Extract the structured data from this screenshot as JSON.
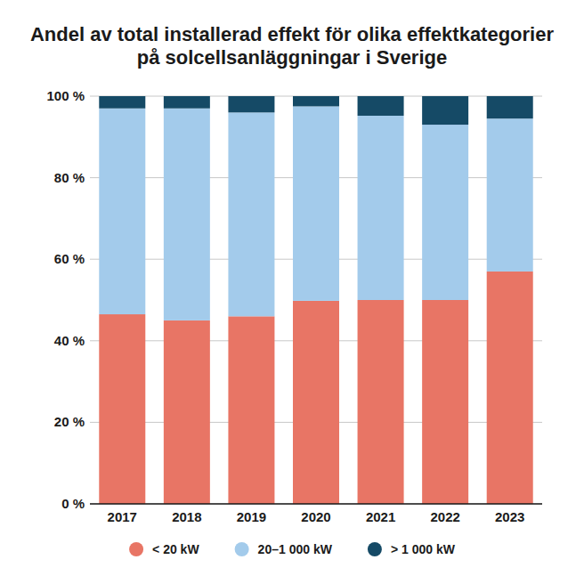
{
  "chart_data": {
    "type": "bar",
    "title": "Andel av total installerad effekt för olika effektkategorier på solcellsanläggningar i Sverige",
    "categories": [
      "2017",
      "2018",
      "2019",
      "2020",
      "2021",
      "2022",
      "2023"
    ],
    "series": [
      {
        "name": "< 20 kW",
        "color": "#e87565",
        "values": [
          46.5,
          45,
          46,
          49.8,
          50,
          50,
          57
        ]
      },
      {
        "name": "20–1 000 kW",
        "color": "#a3cbeb",
        "values": [
          50.5,
          52,
          50,
          47.7,
          45.2,
          43,
          37.5
        ]
      },
      {
        "name": "> 1 000 kW",
        "color": "#154a66",
        "values": [
          3,
          3,
          4,
          2.5,
          4.8,
          7,
          5.5
        ]
      }
    ],
    "stacked": true,
    "ylim": [
      0,
      100
    ],
    "yticks": [
      {
        "value": 0,
        "label": "0 %"
      },
      {
        "value": 20,
        "label": "20 %"
      },
      {
        "value": 40,
        "label": "40 %"
      },
      {
        "value": 60,
        "label": "60 %"
      },
      {
        "value": 80,
        "label": "80 %"
      },
      {
        "value": 100,
        "label": "100 %"
      }
    ],
    "grid": true,
    "legend": "bottom"
  }
}
